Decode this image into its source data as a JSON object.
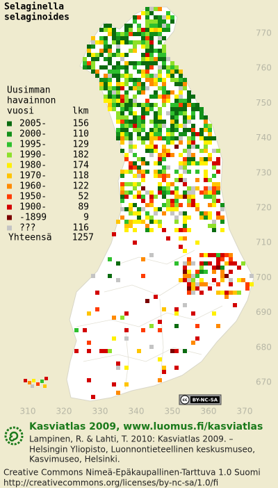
{
  "title": [
    "Selaginella",
    "selaginoides"
  ],
  "legend": {
    "heading": [
      "Uusimman",
      "havainnon",
      "vuosi"
    ],
    "count_heading": "lkm",
    "items": [
      {
        "label": "2005-",
        "count": 156,
        "color": "#0b6b10"
      },
      {
        "label": "2000-",
        "count": 110,
        "color": "#13901a"
      },
      {
        "label": "1995-",
        "count": 129,
        "color": "#2ec02e"
      },
      {
        "label": "1990-",
        "count": 182,
        "color": "#8ee02a"
      },
      {
        "label": "1980-",
        "count": 174,
        "color": "#fff000"
      },
      {
        "label": "1970-",
        "count": 118,
        "color": "#ffc400"
      },
      {
        "label": "1960-",
        "count": 122,
        "color": "#ff8a00"
      },
      {
        "label": "1950-",
        "count": 52,
        "color": "#ff3c00"
      },
      {
        "label": "1900-",
        "count": 89,
        "color": "#d20000"
      },
      {
        "label": "-1899",
        "count": 9,
        "color": "#7a0000"
      },
      {
        "label": "???",
        "count": 116,
        "color": "#c4c4c4"
      }
    ],
    "total_label": "Yhteensä",
    "total": 1257
  },
  "grid_y": [
    770,
    760,
    750,
    740,
    730,
    720,
    710,
    700,
    690,
    680,
    670
  ],
  "grid_x": [
    310,
    320,
    330,
    340,
    350,
    360,
    370
  ],
  "badge": {
    "logo": "cc",
    "label": "BY-NC-SA"
  },
  "footer": {
    "heading": "Kasviatlas 2009, www.luomus.fi/kasviatlas",
    "citation": [
      "Lampinen, R. & Lahti, T. 2010: Kasviatlas 2009. –",
      "Helsingin Yliopisto, Luonnontieteellinen keskusmuseo,",
      "Kasvimuseo, Helsinki."
    ],
    "license": [
      "Creative Commons Nimeä-Epäkaupallinen-Tarttuva 1.0 Suomi",
      "http://creativecommons.org/licenses/by-nc-sa/1.0/fi"
    ]
  }
}
